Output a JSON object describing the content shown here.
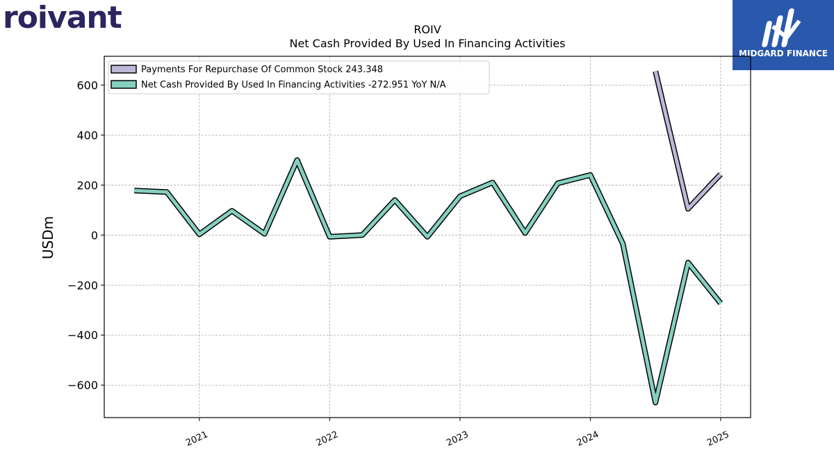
{
  "logos": {
    "left": "roivant",
    "right": "MIDGARD FINANCE"
  },
  "chart_data": {
    "type": "line",
    "title": "ROIV",
    "subtitle": "Net Cash Provided By Used In Financing Activities",
    "ylabel": "USDm",
    "xlabel": "",
    "ylim": [
      -730,
      715
    ],
    "xlim": [
      2020.27,
      2025.23
    ],
    "yticks": [
      -600,
      -400,
      -200,
      0,
      200,
      400,
      600
    ],
    "ytick_labels": [
      "−600",
      "−400",
      "−200",
      "0",
      "200",
      "400",
      "600"
    ],
    "xticks": [
      2021,
      2022,
      2023,
      2024,
      2025
    ],
    "xtick_labels": [
      "2021",
      "2022",
      "2023",
      "2024",
      "2025"
    ],
    "grid": true,
    "legend_position": "top-left",
    "series": [
      {
        "name": "Payments For Repurchase Of Common Stock",
        "legend_label": "Payments For Repurchase Of Common Stock  243.348",
        "color": "#bcb8d8",
        "x": [
          2024.5,
          2024.75,
          2025.0
        ],
        "values": [
          655,
          105,
          243.348
        ]
      },
      {
        "name": "Net Cash Provided By Used In Financing Activities",
        "legend_label": "Net Cash Provided By Used In Financing Activities  -272.951 YoY N/A",
        "color": "#85cfc0",
        "x": [
          2020.5,
          2020.75,
          2021.0,
          2021.25,
          2021.5,
          2021.75,
          2022.0,
          2022.25,
          2022.5,
          2022.75,
          2023.0,
          2023.25,
          2023.5,
          2023.75,
          2024.0,
          2024.25,
          2024.5,
          2024.75,
          2025.0
        ],
        "values": [
          178,
          172,
          3,
          97,
          5,
          300,
          -7,
          0,
          140,
          -7,
          155,
          210,
          8,
          207,
          240,
          -35,
          -670,
          -110,
          -273
        ]
      }
    ]
  }
}
